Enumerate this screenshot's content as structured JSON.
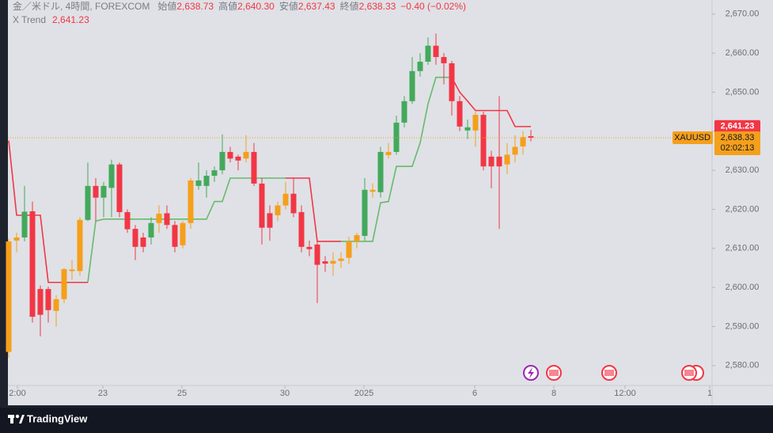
{
  "chart_data": {
    "type": "candlestick",
    "title": "金／米ドル, 4時間, FOREXCOM",
    "ohlc_labels": [
      {
        "name": "始値",
        "value": "2,638.73"
      },
      {
        "name": "高値",
        "value": "2,640.30"
      },
      {
        "name": "安値",
        "value": "2,637.43"
      },
      {
        "name": "終値",
        "value": "2,638.33"
      }
    ],
    "change": "−0.40 (−0.02%)",
    "indicator": "X Trend",
    "trend_value": {
      "value": 2641.23,
      "label": "2,641.23"
    },
    "last_price": {
      "value": 2638.33,
      "label": "2,638.33"
    },
    "symbol": "XAUUSD",
    "countdown": "02:02:13",
    "brand": "TradingView",
    "open": [
      2583.5,
      2612,
      2612.8,
      2619.5,
      2599.6,
      2599.6,
      2594,
      2597,
      2604.2,
      2604.2,
      2617.3,
      2626,
      2623,
      2625.5,
      2631.5,
      2619.3,
      2615,
      2612.8,
      2612.8,
      2616.5,
      2619,
      2616,
      2610.8,
      2616.5,
      2626,
      2626,
      2628.6,
      2630,
      2634.7,
      2633.5,
      2633,
      2634.7,
      2626.6,
      2619,
      2618.5,
      2621,
      2624,
      2619.3,
      2610.4,
      2611,
      2606.7,
      2606.1,
      2606.8,
      2607.6,
      2611.8,
      2613.2,
      2624.5,
      2624.4,
      2633.9,
      2634.7,
      2642.2,
      2647.7,
      2655.4,
      2657.8,
      2661.9,
      2659,
      2657.4,
      2647.7,
      2640.2,
      2640.2,
      2644.2,
      2633.5,
      2633.5,
      2631.5,
      2634,
      2636.1,
      2638.73
    ],
    "high": [
      2612.5,
      2614,
      2626,
      2622,
      2600.5,
      2600.2,
      2598,
      2605,
      2607,
      2618,
      2632,
      2628,
      2627,
      2632.7,
      2632,
      2620,
      2616,
      2614,
      2618,
      2621,
      2621,
      2617,
      2617,
      2628,
      2632,
      2630,
      2631,
      2639.2,
      2636,
      2634,
      2639,
      2637,
      2628,
      2621,
      2622,
      2627,
      2628,
      2621,
      2612,
      2612,
      2608,
      2609,
      2609,
      2613,
      2614,
      2628,
      2626.7,
      2636,
      2637,
      2644,
      2649,
      2659,
      2660,
      2664,
      2665,
      2660,
      2658,
      2649,
      2643,
      2645,
      2645,
      2635,
      2649,
      2637,
      2639,
      2640,
      2640.3
    ],
    "low": [
      2582,
      2609,
      2611.8,
      2591,
      2587.5,
      2591,
      2590,
      2596,
      2602,
      2603,
      2617,
      2617,
      2618,
      2618,
      2618,
      2614,
      2607,
      2609,
      2611,
      2614,
      2615,
      2609,
      2610,
      2615,
      2625,
      2623,
      2627,
      2629,
      2632,
      2630,
      2632,
      2626,
      2611,
      2612,
      2617,
      2620,
      2618,
      2609,
      2608,
      2596,
      2604,
      2603,
      2605,
      2606,
      2610,
      2612,
      2623,
      2623,
      2633,
      2634,
      2641,
      2647,
      2654,
      2657,
      2657,
      2652,
      2644,
      2640,
      2638,
      2636,
      2630,
      2625.4,
      2615,
      2629,
      2632,
      2634,
      2637.43
    ],
    "close": [
      2611.8,
      2612.8,
      2619.4,
      2592.5,
      2593,
      2594.2,
      2597,
      2604.7,
      2604.6,
      2617.3,
      2626,
      2623,
      2626,
      2631.5,
      2619.3,
      2614.9,
      2610.4,
      2610.4,
      2616.5,
      2618.9,
      2616,
      2610.4,
      2616.5,
      2627.4,
      2627.4,
      2628.6,
      2630,
      2634.7,
      2633,
      2632.5,
      2634.7,
      2626.6,
      2615.3,
      2615.3,
      2621,
      2624,
      2619,
      2610.4,
      2609.8,
      2605.8,
      2606.1,
      2606.8,
      2607.4,
      2611.8,
      2613.4,
      2625,
      2625,
      2634.7,
      2634.7,
      2642.2,
      2647.7,
      2655.4,
      2657.8,
      2661.9,
      2659,
      2657.4,
      2647.7,
      2641.2,
      2641,
      2644.2,
      2631,
      2631,
      2631,
      2634,
      2636,
      2638.5,
      2638.33
    ],
    "colors": [
      "#f59f1b",
      "#f59f1b",
      "#43a95b",
      "#f23645",
      "#f23645",
      "#f23645",
      "#f59f1b",
      "#f59f1b",
      "#f59f1b",
      "#f59f1b",
      "#43a95b",
      "#f23645",
      "#43a95b",
      "#43a95b",
      "#f23645",
      "#f23645",
      "#f23645",
      "#f23645",
      "#43a95b",
      "#f59f1b",
      "#f23645",
      "#f23645",
      "#f59f1b",
      "#f59f1b",
      "#43a95b",
      "#43a95b",
      "#43a95b",
      "#43a95b",
      "#f23645",
      "#f23645",
      "#f59f1b",
      "#f23645",
      "#f23645",
      "#f23645",
      "#f59f1b",
      "#f59f1b",
      "#f23645",
      "#f23645",
      "#f23645",
      "#f23645",
      "#f23645",
      "#f59f1b",
      "#f59f1b",
      "#f59f1b",
      "#f59f1b",
      "#43a95b",
      "#f59f1b",
      "#43a95b",
      "#f59f1b",
      "#43a95b",
      "#43a95b",
      "#43a95b",
      "#43a95b",
      "#43a95b",
      "#f23645",
      "#f23645",
      "#f23645",
      "#f23645",
      "#43a95b",
      "#f59f1b",
      "#f23645",
      "#f23645",
      "#f23645",
      "#f59f1b",
      "#f59f1b",
      "#f59f1b",
      "#f23645"
    ],
    "series": [
      {
        "color": "#66bb6a",
        "values": [
          null,
          null,
          null,
          null,
          null,
          null,
          null,
          null,
          null,
          null,
          2601.3,
          2617,
          2617.5,
          2617.5,
          2617.5,
          2617.5,
          2617.5,
          2617.5,
          2617.5,
          2617.5,
          2617.5,
          2617.5,
          2617.5,
          2617.5,
          2617.5,
          2617.5,
          2622,
          2622,
          2628,
          2628,
          2628,
          2628,
          2628,
          2628,
          2628,
          2628,
          null,
          null,
          null,
          null,
          null,
          null,
          2611.8,
          2611.8,
          2611.8,
          2611.8,
          2611.8,
          2621.7,
          2622,
          2631,
          2631,
          2631,
          2637,
          2647,
          2653.8,
          2653.8,
          2653.8,
          null,
          null,
          null,
          null,
          null,
          null,
          null,
          null,
          null,
          null
        ]
      },
      {
        "color": "#f23645",
        "values": [
          2637.6,
          2618.5,
          2618.5,
          2618.5,
          2618.5,
          2601.3,
          2601.3,
          2601.3,
          2601.3,
          2601.3,
          2601.3,
          null,
          null,
          null,
          null,
          null,
          null,
          null,
          null,
          null,
          null,
          null,
          null,
          null,
          null,
          null,
          null,
          null,
          null,
          null,
          null,
          null,
          null,
          null,
          null,
          2628,
          2628,
          2628,
          2628,
          2611.8,
          2611.8,
          2611.8,
          2611.8,
          null,
          null,
          null,
          null,
          null,
          null,
          null,
          null,
          null,
          null,
          null,
          null,
          null,
          2653.8,
          2650,
          2647.7,
          2645.3,
          2645.3,
          2645.3,
          2645.3,
          2645.3,
          2641.2,
          2641.2,
          2641.2
        ]
      }
    ],
    "ylim": [
      2574.9,
      2673.6
    ],
    "yticks": [
      {
        "value": 2670,
        "label": "2,670.00"
      },
      {
        "value": 2660,
        "label": "2,660.00"
      },
      {
        "value": 2650,
        "label": "2,650.00"
      },
      {
        "value": 2640,
        "label": "2,640.00"
      },
      {
        "value": 2630,
        "label": "2,630.00"
      },
      {
        "value": 2620,
        "label": "2,620.00"
      },
      {
        "value": 2610,
        "label": "2,610.00"
      },
      {
        "value": 2600,
        "label": "2,600.00"
      },
      {
        "value": 2590,
        "label": "2,590.00"
      },
      {
        "value": 2580,
        "label": "2,580.00"
      }
    ],
    "xlim": [
      -0.1,
      88.9
    ],
    "xticks": [
      {
        "value": 1.1,
        "label": "2:00"
      },
      {
        "value": 11.9,
        "label": "23"
      },
      {
        "value": 21.9,
        "label": "25"
      },
      {
        "value": 34.9,
        "label": "30"
      },
      {
        "value": 44.9,
        "label": "2025"
      },
      {
        "value": 58.9,
        "label": "6"
      },
      {
        "value": 68.9,
        "label": "8"
      },
      {
        "value": 77.9,
        "label": "12:00"
      },
      {
        "value": 88.6,
        "label": "1"
      }
    ]
  }
}
